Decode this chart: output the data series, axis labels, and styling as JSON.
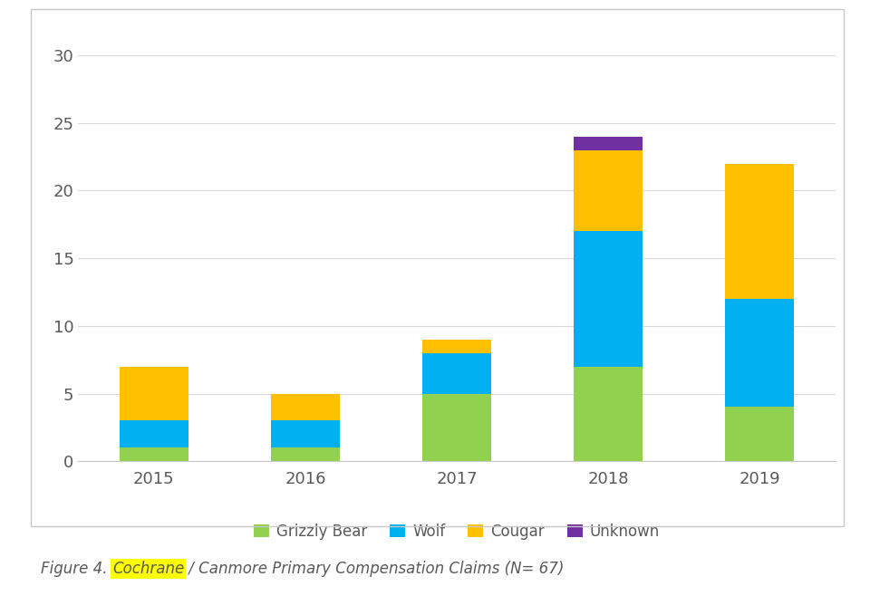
{
  "years": [
    "2015",
    "2016",
    "2017",
    "2018",
    "2019"
  ],
  "grizzly_bear": [
    1,
    1,
    5,
    7,
    4
  ],
  "wolf": [
    2,
    2,
    3,
    10,
    8
  ],
  "cougar": [
    4,
    2,
    1,
    6,
    10
  ],
  "unknown": [
    0,
    0,
    0,
    1,
    0
  ],
  "colors": {
    "grizzly_bear": "#92D050",
    "wolf": "#00B0F0",
    "cougar": "#FFC000",
    "unknown": "#7030A0"
  },
  "ylim": [
    0,
    30
  ],
  "yticks": [
    0,
    5,
    10,
    15,
    20,
    25,
    30
  ],
  "caption_prefix": "Figure 4. ",
  "caption_highlight": "Cochrane",
  "caption_suffix": " / Canmore Primary Compensation Claims (N= 67)",
  "caption_color": "#595959",
  "highlight_color": "#FFFF00",
  "background_color": "#FFFFFF",
  "chart_bg": "#FFFFFF",
  "border_color": "#C8C8C8",
  "grid_color": "#D9D9D9",
  "tick_color": "#595959",
  "bar_width": 0.45
}
